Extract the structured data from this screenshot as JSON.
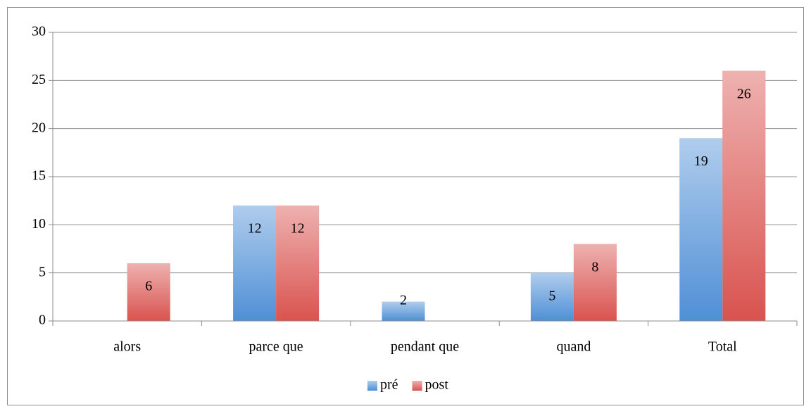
{
  "chart_data": {
    "type": "bar",
    "categories": [
      "alors",
      "parce que",
      "pendant que",
      "quand",
      "Total"
    ],
    "series": [
      {
        "name": "pré",
        "color": "#4f8fd6",
        "values": [
          null,
          12,
          2,
          5,
          19
        ]
      },
      {
        "name": "post",
        "color": "#d9534f",
        "values": [
          6,
          12,
          null,
          8,
          26
        ]
      }
    ],
    "ylim": [
      0,
      30
    ],
    "yticks": [
      0,
      5,
      10,
      15,
      20,
      25,
      30
    ],
    "grid": true,
    "legend": "bottom"
  }
}
